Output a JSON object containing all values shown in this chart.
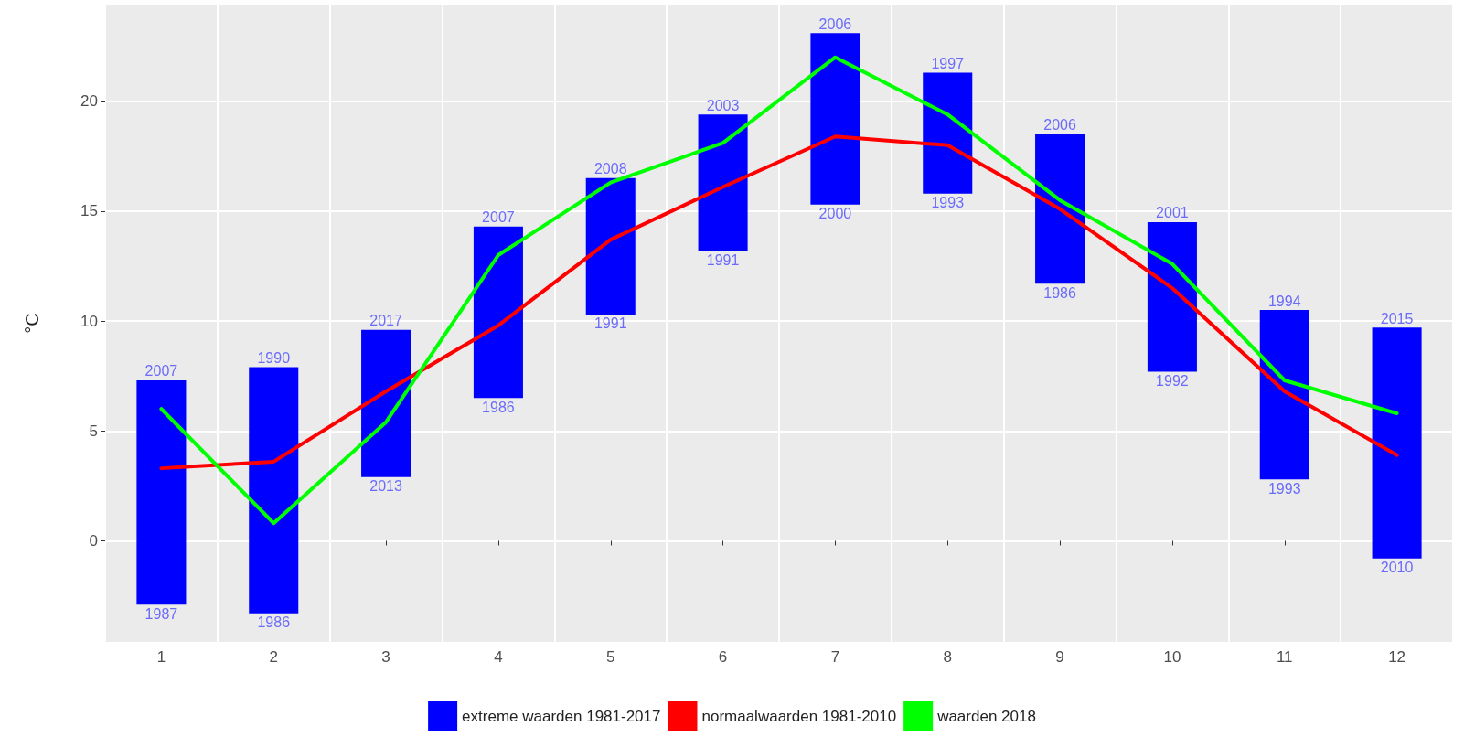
{
  "chart_data": {
    "type": "bar",
    "ylabel": "°C",
    "categories": [
      "1",
      "2",
      "3",
      "4",
      "5",
      "6",
      "7",
      "8",
      "9",
      "10",
      "11",
      "12"
    ],
    "series": [
      {
        "name": "extreme waarden 1981-2017",
        "color": "#0000ff",
        "base": [
          -2.9,
          -3.3,
          2.9,
          6.5,
          10.3,
          13.2,
          15.3,
          15.8,
          11.7,
          7.7,
          2.8,
          -0.8
        ],
        "values": [
          10.2,
          11.2,
          6.7,
          7.8,
          6.2,
          6.2,
          7.8,
          5.5,
          6.8,
          6.8,
          7.7,
          10.5
        ]
      },
      {
        "name": "normaalwaarden 1981-2010",
        "type": "line",
        "color": "#ff0000",
        "values": [
          3.3,
          3.6,
          6.8,
          9.8,
          13.7,
          16.1,
          18.4,
          18.0,
          15.1,
          11.5,
          6.8,
          3.9
        ]
      },
      {
        "name": "waarden 2018",
        "type": "line",
        "color": "#00ff00",
        "values": [
          6.0,
          0.8,
          5.4,
          13.0,
          16.3,
          18.1,
          22.0,
          19.4,
          15.5,
          12.6,
          7.3,
          5.8
        ]
      }
    ],
    "annotations": [
      {
        "text": "2007",
        "x": "1",
        "y": 7.3
      },
      {
        "text": "1987",
        "x": "1",
        "y": -2.9
      },
      {
        "text": "1990",
        "x": "2",
        "y": 7.9
      },
      {
        "text": "1986",
        "x": "2",
        "y": -3.3
      },
      {
        "text": "2017",
        "x": "3",
        "y": 9.6
      },
      {
        "text": "2013",
        "x": "3",
        "y": 2.9
      },
      {
        "text": "2007",
        "x": "4",
        "y": 14.3
      },
      {
        "text": "1986",
        "x": "4",
        "y": 6.5
      },
      {
        "text": "2008",
        "x": "5",
        "y": 16.5
      },
      {
        "text": "1991",
        "x": "5",
        "y": 10.3
      },
      {
        "text": "2003",
        "x": "6",
        "y": 19.4
      },
      {
        "text": "1991",
        "x": "6",
        "y": 13.2
      },
      {
        "text": "2006",
        "x": "7",
        "y": 23.1
      },
      {
        "text": "2000",
        "x": "7",
        "y": 15.3
      },
      {
        "text": "1997",
        "x": "8",
        "y": 21.3
      },
      {
        "text": "1993",
        "x": "8",
        "y": 15.8
      },
      {
        "text": "2006",
        "x": "9",
        "y": 18.5
      },
      {
        "text": "1986",
        "x": "9",
        "y": 11.7
      },
      {
        "text": "2001",
        "x": "10",
        "y": 14.5
      },
      {
        "text": "1992",
        "x": "10",
        "y": 7.7
      },
      {
        "text": "1994",
        "x": "11",
        "y": 10.5
      },
      {
        "text": "1993",
        "x": "11",
        "y": 2.8
      },
      {
        "text": "2015",
        "x": "12",
        "y": 9.7
      },
      {
        "text": "2010",
        "x": "12",
        "y": -0.8
      }
    ],
    "ylim": [
      -4.6,
      24.4
    ],
    "yticks": [
      0,
      5,
      10,
      15,
      20
    ],
    "grid": true,
    "legend": "bottom",
    "line_style": "solid",
    "marker": "none"
  }
}
